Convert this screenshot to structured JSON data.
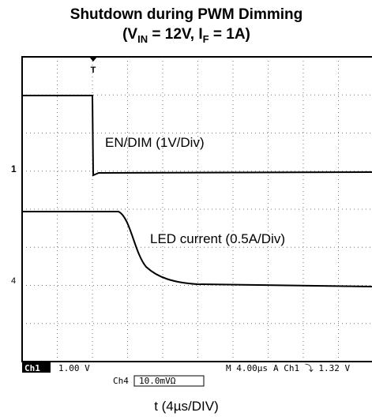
{
  "title": "Shutdown during PWM Dimming",
  "subtitle": [
    "(V",
    "IN",
    " = 12V, I",
    "F",
    " = 1A)"
  ],
  "traces": {
    "en_label": "EN/DIM (1V/Div)",
    "led_label": "LED current (0.5A/Div)"
  },
  "markers": {
    "trigger": "T",
    "ch1": "1",
    "ch4": "4"
  },
  "status": {
    "ch1": "Ch1",
    "ch1_scale": "1.00 V",
    "time": "M 4.00µs",
    "trigger": "A  Ch1  ⤵  1.32 V",
    "ch4": "Ch4",
    "ch4_scale": "10.0mVΩ"
  },
  "x_label": "t (4µs/DIV)"
}
